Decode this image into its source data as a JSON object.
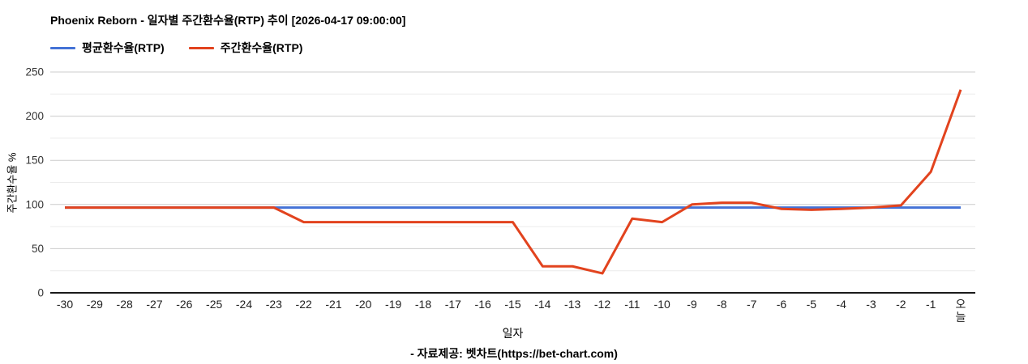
{
  "title": "Phoenix Reborn - 일자별 주간환수율(RTP) 추이 [2026-04-17 09:00:00]",
  "footer": "- 자료제공: 벳차트(https://bet-chart.com)",
  "chart_data": {
    "type": "line",
    "title": "Phoenix Reborn - 일자별 주간환수율(RTP) 추이 [2026-04-17 09:00:00]",
    "xlabel": "일자",
    "ylabel": "주간환수율 %",
    "ylim": [
      0,
      250
    ],
    "yticks": [
      0,
      50,
      100,
      150,
      200,
      250
    ],
    "grid_step": 25,
    "grid": "horizontal",
    "legend_position": "top-left",
    "categories": [
      "-30",
      "-29",
      "-28",
      "-27",
      "-26",
      "-25",
      "-24",
      "-23",
      "-22",
      "-21",
      "-20",
      "-19",
      "-18",
      "-17",
      "-16",
      "-15",
      "-14",
      "-13",
      "-12",
      "-11",
      "-10",
      "-9",
      "-8",
      "-7",
      "-6",
      "-5",
      "-4",
      "-3",
      "-2",
      "-1",
      "오늘"
    ],
    "series": [
      {
        "name": "평균환수율(RTP)",
        "color": "#4472d6",
        "values": [
          96.5,
          96.5,
          96.5,
          96.5,
          96.5,
          96.5,
          96.5,
          96.5,
          96.5,
          96.5,
          96.5,
          96.5,
          96.5,
          96.5,
          96.5,
          96.5,
          96.5,
          96.5,
          96.5,
          96.5,
          96.5,
          96.5,
          96.5,
          96.5,
          96.5,
          96.5,
          96.5,
          96.5,
          96.5,
          96.5,
          96.5
        ]
      },
      {
        "name": "주간환수율(RTP)",
        "color": "#e2431e",
        "values": [
          96.5,
          96.5,
          96.5,
          96.5,
          96.5,
          96.5,
          96.5,
          96.5,
          80,
          80,
          80,
          80,
          80,
          80,
          80,
          80,
          30,
          30,
          22,
          84,
          80,
          100,
          102,
          102,
          95,
          94,
          95,
          96.5,
          99,
          137,
          230
        ]
      }
    ]
  }
}
